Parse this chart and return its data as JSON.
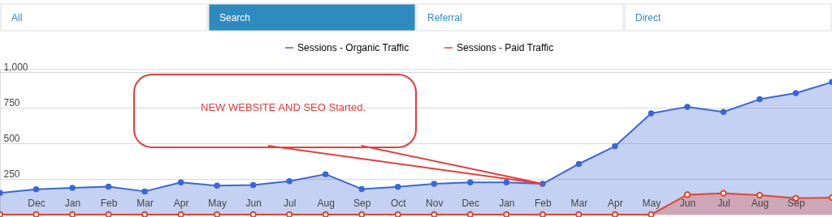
{
  "chart_data": {
    "type": "area",
    "categories": [
      null,
      "Dec",
      "Jan",
      "Feb",
      "Mar",
      "Apr",
      "May",
      "Jun",
      "Jul",
      "Aug",
      "Sep",
      "Oct",
      "Nov",
      "Dec",
      "Jan",
      "Feb",
      "Mar",
      "Apr",
      "May",
      "Jun",
      "Jul",
      "Aug",
      "Sep",
      null
    ],
    "series": [
      {
        "name": "Sessions - Organic Traffic",
        "color": "#3a67d4",
        "values": [
          152,
          178,
          188,
          197,
          163,
          226,
          203,
          208,
          235,
          284,
          180,
          195,
          216,
          227,
          226,
          216,
          356,
          481,
          712,
          758,
          722,
          811,
          854,
          932
        ]
      },
      {
        "name": "Sessions - Paid Traffic",
        "color": "#e0452f",
        "values": [
          0,
          0,
          0,
          0,
          0,
          0,
          0,
          0,
          0,
          0,
          0,
          0,
          0,
          0,
          0,
          0,
          0,
          0,
          0,
          140,
          150,
          136,
          115,
          119
        ]
      }
    ],
    "ylim": [
      0,
      1025
    ],
    "yticks": [
      250,
      500,
      750,
      {
        "value": 1000,
        "label": "1,000"
      }
    ],
    "grid": "y",
    "legend": "top",
    "marker": "circle",
    "annotations": [
      "All",
      "Search",
      "Referral",
      "Direct",
      "NEW WEBSITE AND SEO Started."
    ]
  }
}
